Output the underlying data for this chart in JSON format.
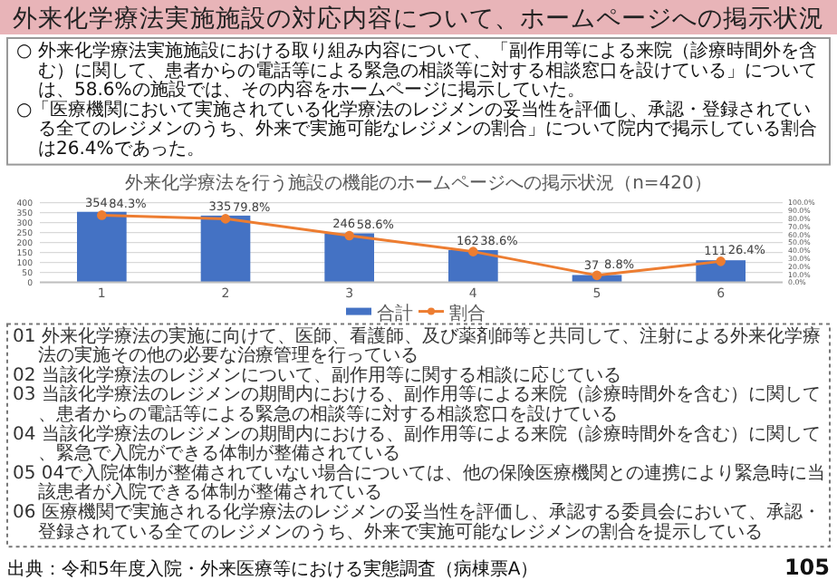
{
  "chart_data": {
    "type": "bar",
    "title": "外来化学療法実施施設の対応内容について、ホームページへの掲示状況",
    "subtitle": "外来化学療法を行う施設の機能のホームページへの掲示状況（n=420）",
    "categories": [
      "1",
      "2",
      "3",
      "4",
      "5",
      "6"
    ],
    "series": [
      {
        "name": "合計",
        "color": "#4472c4",
        "values": [
          354,
          335,
          246,
          162,
          37,
          111
        ],
        "value_labels": [
          "354",
          "335",
          "246",
          "162",
          "37",
          "111"
        ]
      },
      {
        "name": "割合",
        "type": "line",
        "axis": "y2",
        "color": "#ed7d31",
        "marker": "circle",
        "values": [
          84.3,
          79.8,
          58.6,
          38.6,
          8.8,
          26.4
        ],
        "value_labels": [
          "84.3%",
          "79.8%",
          "58.6%",
          "38.6%",
          "8.8%",
          "26.4%"
        ]
      }
    ],
    "ylim": [
      0,
      400
    ],
    "yticks": [
      0,
      50,
      100,
      150,
      200,
      250,
      300,
      350,
      400
    ],
    "y2lim": [
      0,
      100
    ],
    "y2ticks": [
      {
        "value": 0,
        "label": "0.0%"
      },
      {
        "value": 10,
        "label": "10.0%"
      },
      {
        "value": 20,
        "label": "20.0%"
      },
      {
        "value": 30,
        "label": "30.0%"
      },
      {
        "value": 40,
        "label": "40.0%"
      },
      {
        "value": 50,
        "label": "50.0%"
      },
      {
        "value": 60,
        "label": "60.0%"
      },
      {
        "value": 70,
        "label": "70.0%"
      },
      {
        "value": 80,
        "label": "80.0%"
      },
      {
        "value": 90,
        "label": "90.0%"
      },
      {
        "value": 100,
        "label": "100.0%"
      }
    ],
    "grid": "y",
    "legend": "bottom",
    "annotations": [
      "○ 外来化学療法実施施設における取り組み内容について、「副作用等による来院（診療時間外を含む）に関して、患者からの電話等による緊急の相談等に対する相談窓口を設けている」については、58.6%の施設では、その内容をホームページに掲示していた。",
      "○「医療機関において実施されている化学療法のレジメンの妥当性を評価し、承認・登録されている全てのレジメンのうち、外来で実施可能なレジメンの割合」について院内で掲示している割合は26.4%であった。",
      "01 外来化学療法の実施に向けて、医師、看護師、及び薬剤師等と共同して、注射による外来化学療法の実施その他の必要な治療管理を行っている",
      "02 当該化学療法のレジメンについて、副作用等に関する相談に応じている",
      "03 当該化学療法のレジメンの期間内における、副作用等による来院（診療時間外を含む）に関して、患者からの電話等による緊急の相談等に対する相談窓口を設けている",
      "04 当該化学療法のレジメンの期間内における、副作用等による来院（診療時間外を含む）に関して、緊急で入院ができる体制が整備されている",
      "05 04で入院体制が整備されていない場合については、他の保険医療機関との連携により緊急時に当該患者が入院できる体制が整備されている",
      "06 医療機関で実施される化学療法のレジメンの妥当性を評価し、承認する委員会において、承認・登録されている全てのレジメンのうち、外来で実施可能なレジメンの割合を提示している",
      "出典：令和5年度入院・外来医療等における実態調査（病棟票A）",
      "105"
    ]
  }
}
